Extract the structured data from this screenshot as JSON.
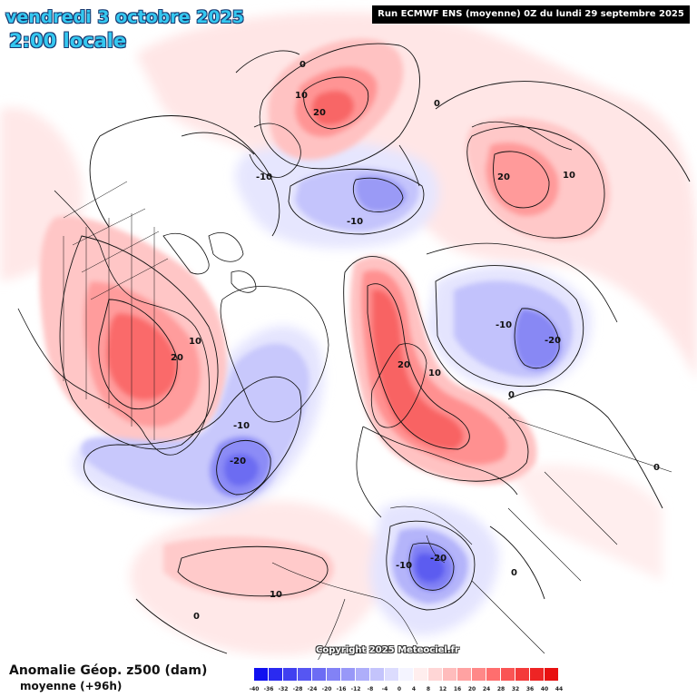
{
  "title": {
    "date": "vendredi 3 octobre 2025",
    "time": "2:00 locale"
  },
  "run_info": "Run ECMWF ENS (moyenne) 0Z du lundi 29 septembre 2025",
  "copyright": "Copyright 2025 Meteociel.fr",
  "variable": {
    "name": "Anomalie Géop. z500 (dam)",
    "subtitle": "moyenne  (+96h)"
  },
  "legend": {
    "ticks": [
      "-40",
      "-36",
      "-32",
      "-28",
      "-24",
      "-20",
      "-16",
      "-12",
      "-8",
      "-4",
      "0",
      "4",
      "8",
      "12",
      "16",
      "20",
      "24",
      "28",
      "32",
      "36",
      "40",
      "44"
    ],
    "colors": [
      "#1010f0",
      "#2a2af0",
      "#4040f0",
      "#5656f2",
      "#6c6cf4",
      "#8282f6",
      "#9898f8",
      "#aeaefa",
      "#c4c4fc",
      "#dcdcfe",
      "#f4f4ff",
      "#ffeeee",
      "#ffd6d6",
      "#ffbcbc",
      "#ffa2a2",
      "#ff8888",
      "#ff6e6e",
      "#fa5454",
      "#f43a3a",
      "#ee2424",
      "#e81010"
    ]
  },
  "contour_labels": {
    "l1": "0",
    "l2": "10",
    "l3": "20",
    "l4": "0",
    "l5": "-10",
    "l6": "-10",
    "l7": "20",
    "l8": "10",
    "l9": "-10",
    "l10": "-20",
    "l11": "10",
    "l12": "20",
    "l13": "-10",
    "l14": "-20",
    "l15": "20",
    "l16": "10",
    "l17": "0",
    "l18": "0",
    "l19": "-20",
    "l20": "-10",
    "l21": "0",
    "l22": "10",
    "l23": "0"
  }
}
